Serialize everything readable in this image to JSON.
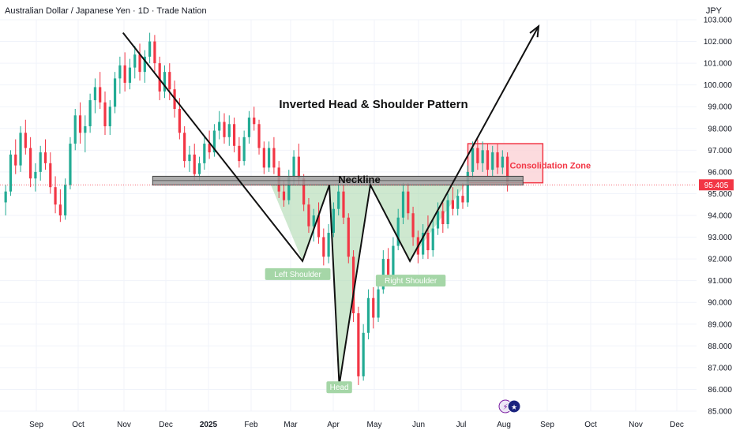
{
  "header": {
    "title": "Australian Dollar / Japanese Yen · 1D · Trade Nation",
    "currency": "JPY"
  },
  "colors": {
    "up": "#22ab94",
    "down": "#f23645",
    "pattern_fill": "#a5d6a7",
    "consolidation_fill": "#fbd2d6",
    "consolidation_border": "#f23645",
    "neckline_fill": "#9e9e9e",
    "price_badge": "#f23645",
    "grid": "#f0f3fa"
  },
  "chart_data": {
    "type": "candlestick",
    "title": "Inverted Head & Shoulder Pattern",
    "y_axis": {
      "labels": [
        "103.000",
        "102.000",
        "101.000",
        "100.000",
        "99.000",
        "98.000",
        "97.000",
        "96.000",
        "95.000",
        "94.000",
        "93.000",
        "92.000",
        "91.000",
        "90.000",
        "89.000",
        "88.000",
        "87.000",
        "86.000",
        "85.000"
      ],
      "ylim": [
        85,
        103
      ]
    },
    "x_axis": {
      "labels": [
        "Sep",
        "Oct",
        "Nov",
        "Dec",
        "2025",
        "Feb",
        "Mar",
        "Apr",
        "May",
        "Jun",
        "Jul",
        "Aug",
        "Sep",
        "Oct",
        "Nov",
        "Dec"
      ]
    },
    "last_price": "95.405",
    "pattern_path": [
      {
        "date": "2024-11-05",
        "price": 102.4
      },
      {
        "date": "2025-03-12",
        "price": 91.9
      },
      {
        "date": "2025-03-31",
        "price": 95.4
      },
      {
        "date": "2025-04-07",
        "price": 86.2
      },
      {
        "date": "2025-04-29",
        "price": 95.4
      },
      {
        "date": "2025-05-27",
        "price": 91.9
      },
      {
        "date": "2025-08-26",
        "price": 102.7
      }
    ],
    "annotations": {
      "neckline": {
        "label": "Neckline",
        "price_top": 95.8,
        "price_bottom": 95.4,
        "from": "2024-11-26",
        "to": "2025-08-15"
      },
      "consolidation": {
        "label": "Consolidation Zone",
        "price_top": 97.3,
        "price_bottom": 95.5,
        "from": "2025-07-07",
        "to": "2025-08-29"
      },
      "left_shoulder": {
        "label": "Left Shoulder",
        "date": "2025-03-12",
        "price": 91.9
      },
      "head": {
        "label": "Head",
        "date": "2025-04-07",
        "price": 86.2
      },
      "right_shoulder": {
        "label": "Right Shoulder",
        "date": "2025-05-27",
        "price": 91.9
      }
    },
    "candles_ohlc": [
      [
        94.6,
        95.4,
        94.0,
        95.1
      ],
      [
        95.1,
        97.0,
        94.9,
        96.8
      ],
      [
        96.8,
        97.5,
        95.9,
        96.3
      ],
      [
        96.3,
        98.1,
        96.0,
        97.8
      ],
      [
        97.8,
        98.4,
        96.8,
        97.1
      ],
      [
        97.1,
        97.6,
        95.3,
        95.7
      ],
      [
        95.7,
        96.4,
        95.1,
        96.0
      ],
      [
        96.0,
        97.2,
        95.6,
        96.9
      ],
      [
        96.9,
        97.5,
        96.1,
        96.4
      ],
      [
        96.4,
        96.9,
        95.0,
        95.3
      ],
      [
        95.3,
        95.8,
        94.1,
        94.5
      ],
      [
        94.5,
        95.2,
        93.7,
        94.0
      ],
      [
        94.0,
        95.7,
        93.8,
        95.4
      ],
      [
        95.4,
        97.6,
        95.2,
        97.3
      ],
      [
        97.3,
        98.9,
        97.0,
        98.6
      ],
      [
        98.6,
        99.2,
        97.3,
        97.8
      ],
      [
        97.8,
        98.6,
        96.9,
        98.1
      ],
      [
        98.1,
        99.6,
        97.8,
        99.3
      ],
      [
        99.3,
        100.3,
        98.7,
        99.9
      ],
      [
        99.9,
        100.6,
        98.9,
        99.2
      ],
      [
        99.2,
        99.7,
        97.7,
        98.1
      ],
      [
        98.1,
        99.3,
        97.7,
        99.0
      ],
      [
        99.0,
        100.6,
        98.7,
        100.3
      ],
      [
        100.3,
        101.3,
        99.6,
        100.9
      ],
      [
        100.9,
        101.5,
        99.7,
        100.1
      ],
      [
        100.1,
        101.2,
        99.8,
        100.8
      ],
      [
        100.8,
        101.8,
        100.3,
        101.4
      ],
      [
        101.4,
        101.9,
        100.2,
        100.6
      ],
      [
        100.6,
        101.6,
        100.1,
        101.3
      ],
      [
        101.3,
        102.4,
        101.0,
        102.0
      ],
      [
        102.0,
        102.3,
        100.6,
        101.0
      ],
      [
        101.0,
        101.3,
        99.3,
        99.7
      ],
      [
        99.7,
        100.9,
        99.4,
        100.6
      ],
      [
        100.6,
        101.0,
        99.3,
        99.8
      ],
      [
        99.8,
        100.2,
        98.5,
        98.9
      ],
      [
        98.9,
        99.4,
        97.5,
        97.8
      ],
      [
        97.8,
        98.1,
        96.2,
        96.5
      ],
      [
        96.5,
        97.2,
        96.0,
        96.8
      ],
      [
        96.8,
        97.3,
        95.6,
        95.9
      ],
      [
        95.9,
        96.7,
        95.6,
        96.4
      ],
      [
        96.4,
        97.6,
        96.1,
        97.3
      ],
      [
        97.3,
        97.9,
        96.6,
        96.9
      ],
      [
        96.9,
        98.2,
        96.7,
        97.9
      ],
      [
        97.9,
        98.8,
        97.5,
        98.3
      ],
      [
        98.3,
        98.7,
        97.3,
        97.6
      ],
      [
        97.6,
        98.6,
        97.2,
        98.2
      ],
      [
        98.2,
        98.5,
        96.9,
        97.2
      ],
      [
        97.2,
        97.6,
        96.2,
        96.5
      ],
      [
        96.5,
        97.9,
        96.3,
        97.6
      ],
      [
        97.6,
        98.8,
        97.3,
        98.5
      ],
      [
        98.5,
        99.0,
        97.9,
        98.2
      ],
      [
        98.2,
        98.4,
        96.8,
        97.1
      ],
      [
        97.1,
        97.4,
        95.9,
        96.2
      ],
      [
        96.2,
        97.4,
        96.0,
        97.1
      ],
      [
        97.1,
        97.6,
        95.9,
        96.2
      ],
      [
        96.2,
        96.5,
        94.8,
        95.1
      ],
      [
        95.1,
        95.6,
        94.4,
        94.7
      ],
      [
        94.7,
        96.1,
        94.5,
        95.8
      ],
      [
        95.8,
        97.0,
        95.4,
        96.7
      ],
      [
        96.7,
        97.3,
        95.4,
        95.7
      ],
      [
        95.7,
        95.9,
        94.2,
        94.5
      ],
      [
        94.5,
        94.8,
        93.2,
        93.5
      ],
      [
        93.5,
        94.3,
        92.8,
        94.0
      ],
      [
        94.0,
        94.6,
        92.7,
        93.0
      ],
      [
        93.0,
        93.4,
        91.7,
        92.1
      ],
      [
        92.1,
        93.6,
        91.8,
        93.2
      ],
      [
        93.2,
        94.6,
        93.0,
        94.3
      ],
      [
        94.3,
        95.5,
        94.0,
        95.1
      ],
      [
        95.1,
        95.4,
        93.6,
        93.9
      ],
      [
        93.9,
        94.1,
        91.8,
        92.1
      ],
      [
        92.1,
        92.4,
        89.1,
        89.5
      ],
      [
        89.5,
        89.8,
        86.2,
        86.6
      ],
      [
        86.6,
        89.0,
        86.4,
        88.6
      ],
      [
        88.6,
        90.6,
        88.3,
        90.2
      ],
      [
        90.2,
        90.7,
        88.8,
        89.3
      ],
      [
        89.3,
        91.0,
        89.1,
        90.6
      ],
      [
        90.6,
        92.4,
        90.4,
        92.0
      ],
      [
        92.0,
        92.5,
        90.8,
        91.2
      ],
      [
        91.2,
        93.0,
        91.0,
        92.6
      ],
      [
        92.6,
        94.3,
        92.4,
        93.9
      ],
      [
        93.9,
        95.5,
        93.6,
        95.1
      ],
      [
        95.1,
        95.5,
        93.8,
        94.1
      ],
      [
        94.1,
        94.4,
        92.6,
        93.0
      ],
      [
        93.0,
        93.3,
        91.8,
        92.2
      ],
      [
        92.2,
        93.6,
        92.0,
        93.2
      ],
      [
        93.2,
        94.0,
        92.0,
        92.4
      ],
      [
        92.4,
        93.8,
        92.1,
        93.4
      ],
      [
        93.4,
        94.6,
        93.1,
        94.2
      ],
      [
        94.2,
        94.6,
        93.2,
        93.6
      ],
      [
        93.6,
        95.0,
        93.4,
        94.7
      ],
      [
        94.7,
        95.3,
        94.0,
        94.3
      ],
      [
        94.3,
        95.2,
        94.0,
        94.9
      ],
      [
        94.9,
        95.5,
        94.3,
        94.6
      ],
      [
        94.6,
        96.3,
        94.4,
        96.0
      ],
      [
        96.0,
        97.4,
        95.7,
        97.1
      ],
      [
        97.1,
        97.5,
        96.1,
        96.4
      ],
      [
        96.4,
        97.4,
        96.0,
        97.0
      ],
      [
        97.0,
        97.3,
        95.8,
        96.1
      ],
      [
        96.1,
        97.2,
        95.8,
        96.9
      ],
      [
        96.9,
        97.3,
        95.9,
        96.2
      ],
      [
        96.2,
        97.0,
        95.9,
        96.7
      ],
      [
        96.7,
        96.9,
        95.1,
        95.4
      ]
    ]
  },
  "watermark_icons": [
    "flash-icon",
    "australia-flag-icon"
  ]
}
